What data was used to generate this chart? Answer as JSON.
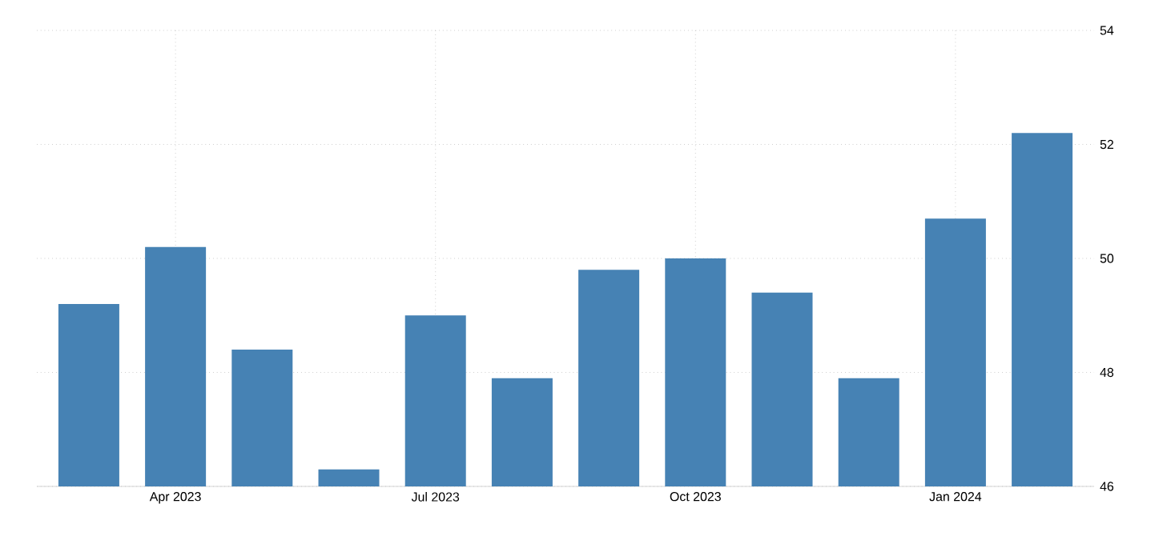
{
  "chart_data": {
    "type": "bar",
    "categories": [
      null,
      "Apr 2023",
      null,
      null,
      "Jul 2023",
      null,
      null,
      "Oct 2023",
      null,
      null,
      "Jan 2024",
      null
    ],
    "values": [
      49.2,
      50.2,
      48.4,
      46.3,
      49.0,
      47.9,
      49.8,
      50.0,
      49.4,
      47.9,
      50.7,
      52.2
    ],
    "color": "#4682b4",
    "ylim": [
      46,
      54
    ],
    "yticks": [
      46,
      48,
      50,
      52,
      54
    ],
    "grid": true
  }
}
